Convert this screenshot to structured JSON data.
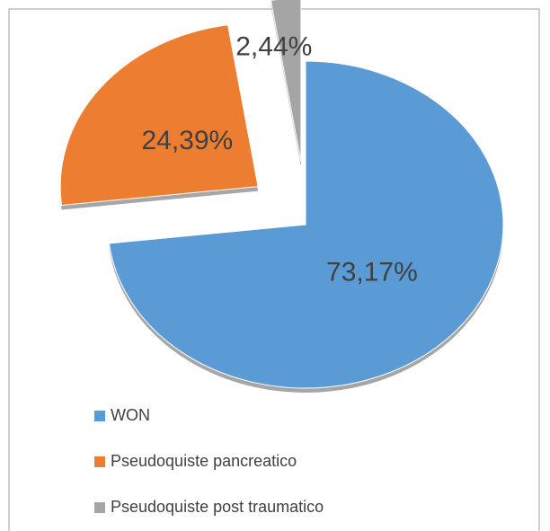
{
  "chart_data": {
    "type": "pie",
    "categories": [
      "WON",
      "Pseudoquiste pancreatico",
      "Pseudoquiste post traumatico"
    ],
    "values": [
      73.17,
      24.39,
      2.44
    ],
    "value_labels": [
      "73,17%",
      "24,39%",
      "2,44%"
    ],
    "colors": [
      "#5b9bd5",
      "#ed7d31",
      "#a5a5a5"
    ],
    "legend": "bottom"
  }
}
